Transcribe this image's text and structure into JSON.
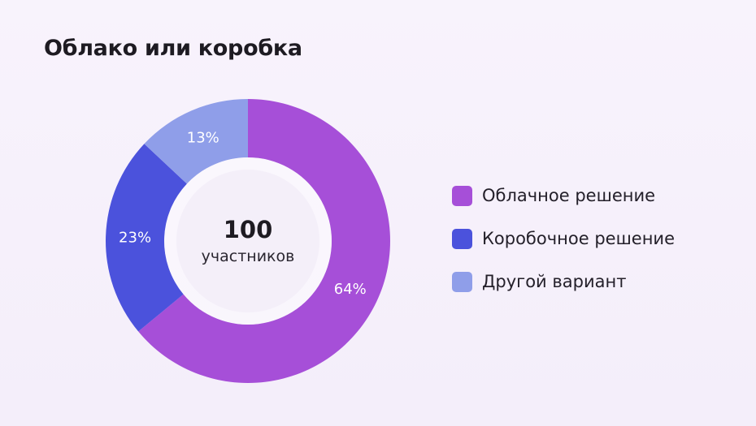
{
  "title": "Облако или коробка",
  "center": {
    "count": "100",
    "label": "участников"
  },
  "colors": {
    "background": "#f6f0fb",
    "cloud": "#a64fd8",
    "box": "#4b52dc",
    "other": "#8f9ee9",
    "inner_ring": "#ffffff",
    "center_fill": "#f4eff9"
  },
  "chart_data": {
    "type": "pie",
    "title": "Облако или коробка",
    "total": 100,
    "categories": [
      "Облачное решение",
      "Коробочное решение",
      "Другой вариант"
    ],
    "values": [
      64,
      23,
      13
    ],
    "labels": [
      "64%",
      "23%",
      "13%"
    ],
    "colors": [
      "#a64fd8",
      "#4b52dc",
      "#8f9ee9"
    ],
    "legend_position": "right"
  }
}
